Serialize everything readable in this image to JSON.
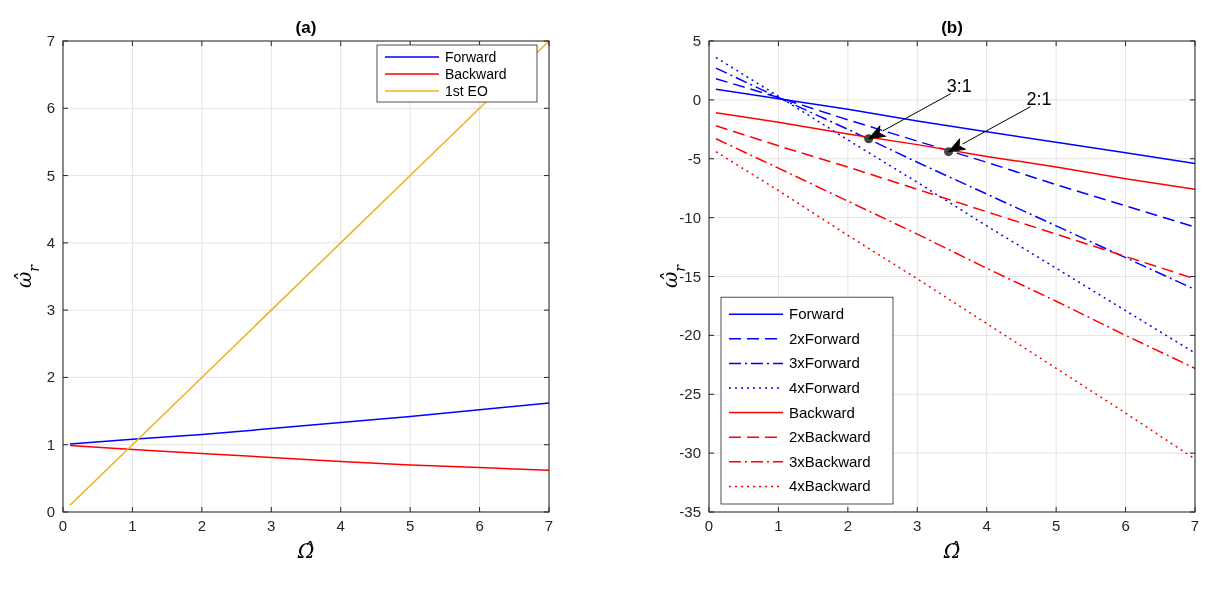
{
  "chart_data": [
    {
      "type": "line",
      "title": "(a)",
      "xlabel": "Ω̂",
      "ylabel": "ω̂$_{r}$",
      "x": [
        0.1,
        1,
        2,
        3,
        4,
        5,
        6,
        7
      ],
      "xlim": [
        0,
        7
      ],
      "xticks": [
        0,
        1,
        2,
        3,
        4,
        5,
        6,
        7
      ],
      "ylim": [
        0,
        7
      ],
      "yticks": [
        0,
        1,
        2,
        3,
        4,
        5,
        6,
        7
      ],
      "grid": true,
      "legend": "top right",
      "series": [
        {
          "name": "Forward",
          "color": "#0000ff",
          "values": [
            1.01,
            1.08,
            1.15,
            1.24,
            1.33,
            1.42,
            1.52,
            1.62
          ]
        },
        {
          "name": "Backward",
          "color": "#ff0000",
          "values": [
            0.99,
            0.93,
            0.87,
            0.81,
            0.75,
            0.7,
            0.66,
            0.62
          ]
        },
        {
          "name": "1st EO",
          "color": "#edb120",
          "values": [
            0.1,
            1,
            2,
            3,
            4,
            5,
            6,
            7
          ]
        }
      ]
    },
    {
      "type": "line",
      "title": "(b)",
      "xlabel": "Ω̂",
      "ylabel": "ω̂$_{r}$",
      "x": [
        0.1,
        1,
        2,
        3,
        4,
        5,
        6,
        7
      ],
      "xlim": [
        0,
        7
      ],
      "xticks": [
        0,
        1,
        2,
        3,
        4,
        5,
        6,
        7
      ],
      "ylim": [
        -35,
        5
      ],
      "yticks": [
        -35,
        -30,
        -25,
        -20,
        -15,
        -10,
        -5,
        0,
        5
      ],
      "grid": true,
      "legend": "bottom left",
      "annotations": [
        "3:1",
        "2:1"
      ],
      "series": [
        {
          "name": "Forward",
          "color": "#0000ff",
          "line_style": "solid",
          "values": [
            0.9,
            0.1,
            -0.8,
            -1.8,
            -2.7,
            -3.6,
            -4.5,
            -5.4
          ]
        },
        {
          "name": "2xForward",
          "color": "#0000ff",
          "line_style": "dashed",
          "values": [
            1.8,
            0.2,
            -1.7,
            -3.5,
            -5.3,
            -7.2,
            -9.0,
            -10.8
          ]
        },
        {
          "name": "3xForward",
          "color": "#0000ff",
          "line_style": "dashdot",
          "values": [
            2.7,
            0.2,
            -2.5,
            -5.3,
            -8.0,
            -10.7,
            -13.4,
            -16.1
          ]
        },
        {
          "name": "4xForward",
          "color": "#0000ff",
          "line_style": "dotted",
          "values": [
            3.6,
            0.3,
            -3.4,
            -7.0,
            -10.7,
            -14.3,
            -17.9,
            -21.5
          ]
        },
        {
          "name": "Backward",
          "color": "#ff0000",
          "line_style": "solid",
          "values": [
            -1.1,
            -1.9,
            -2.9,
            -3.8,
            -4.8,
            -5.7,
            -6.7,
            -7.6
          ]
        },
        {
          "name": "2xBackward",
          "color": "#ff0000",
          "line_style": "dashed",
          "values": [
            -2.2,
            -3.9,
            -5.7,
            -7.6,
            -9.5,
            -11.4,
            -13.3,
            -15.2
          ]
        },
        {
          "name": "3xBackward",
          "color": "#ff0000",
          "line_style": "dashdot",
          "values": [
            -3.3,
            -5.8,
            -8.6,
            -11.4,
            -14.3,
            -17.1,
            -20.0,
            -22.8
          ]
        },
        {
          "name": "4xBackward",
          "color": "#ff0000",
          "line_style": "dotted",
          "values": [
            -4.4,
            -7.7,
            -11.5,
            -15.2,
            -19.0,
            -22.8,
            -26.6,
            -30.5
          ]
        },
        {
          "type": "scatter",
          "color": "#444444",
          "marker": "circle",
          "x": [
            2.3,
            3.45
          ],
          "values": [
            -3.3,
            -4.4
          ]
        }
      ]
    }
  ]
}
